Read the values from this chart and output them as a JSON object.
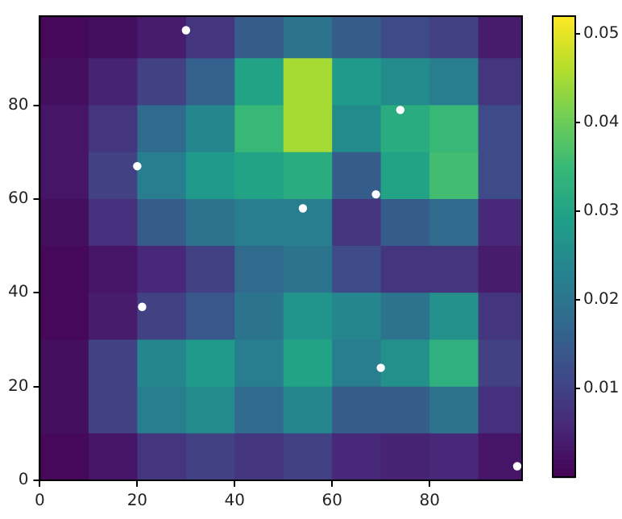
{
  "chart_data": {
    "type": "heatmap",
    "x": [
      5,
      15,
      25,
      35,
      45,
      55,
      65,
      75,
      85,
      95
    ],
    "y": [
      95,
      85,
      75,
      65,
      55,
      45,
      35,
      25,
      15,
      5
    ],
    "cells": [
      [
        0.001,
        0.002,
        0.004,
        0.008,
        0.015,
        0.02,
        0.015,
        0.012,
        0.01,
        0.004
      ],
      [
        0.002,
        0.005,
        0.01,
        0.016,
        0.03,
        0.045,
        0.028,
        0.025,
        0.022,
        0.008
      ],
      [
        0.003,
        0.008,
        0.018,
        0.024,
        0.035,
        0.045,
        0.025,
        0.032,
        0.035,
        0.012
      ],
      [
        0.003,
        0.01,
        0.022,
        0.028,
        0.03,
        0.032,
        0.015,
        0.03,
        0.036,
        0.012
      ],
      [
        0.002,
        0.007,
        0.015,
        0.02,
        0.022,
        0.022,
        0.008,
        0.015,
        0.018,
        0.006
      ],
      [
        0.001,
        0.003,
        0.006,
        0.01,
        0.018,
        0.02,
        0.012,
        0.008,
        0.008,
        0.004
      ],
      [
        0.001,
        0.004,
        0.01,
        0.014,
        0.02,
        0.027,
        0.024,
        0.02,
        0.026,
        0.008
      ],
      [
        0.002,
        0.01,
        0.024,
        0.028,
        0.022,
        0.03,
        0.022,
        0.026,
        0.033,
        0.01
      ],
      [
        0.002,
        0.01,
        0.022,
        0.025,
        0.018,
        0.024,
        0.015,
        0.015,
        0.02,
        0.007
      ],
      [
        0.001,
        0.003,
        0.008,
        0.01,
        0.008,
        0.01,
        0.006,
        0.005,
        0.006,
        0.003
      ]
    ],
    "clim": [
      0,
      0.052
    ],
    "cticks": [
      0.01,
      0.02,
      0.03,
      0.04,
      0.05
    ],
    "xlim": [
      0,
      99
    ],
    "ylim": [
      0,
      99
    ],
    "xticks": [
      0,
      20,
      40,
      60,
      80
    ],
    "yticks": [
      0,
      20,
      40,
      60,
      80
    ],
    "series": [
      {
        "type": "scatter",
        "color": "#ffffff",
        "marker": "circle",
        "x": [
          30,
          74,
          20,
          69,
          54,
          21,
          70,
          98
        ],
        "values": [
          96,
          79,
          67,
          61,
          58,
          37,
          24,
          3
        ]
      }
    ]
  }
}
